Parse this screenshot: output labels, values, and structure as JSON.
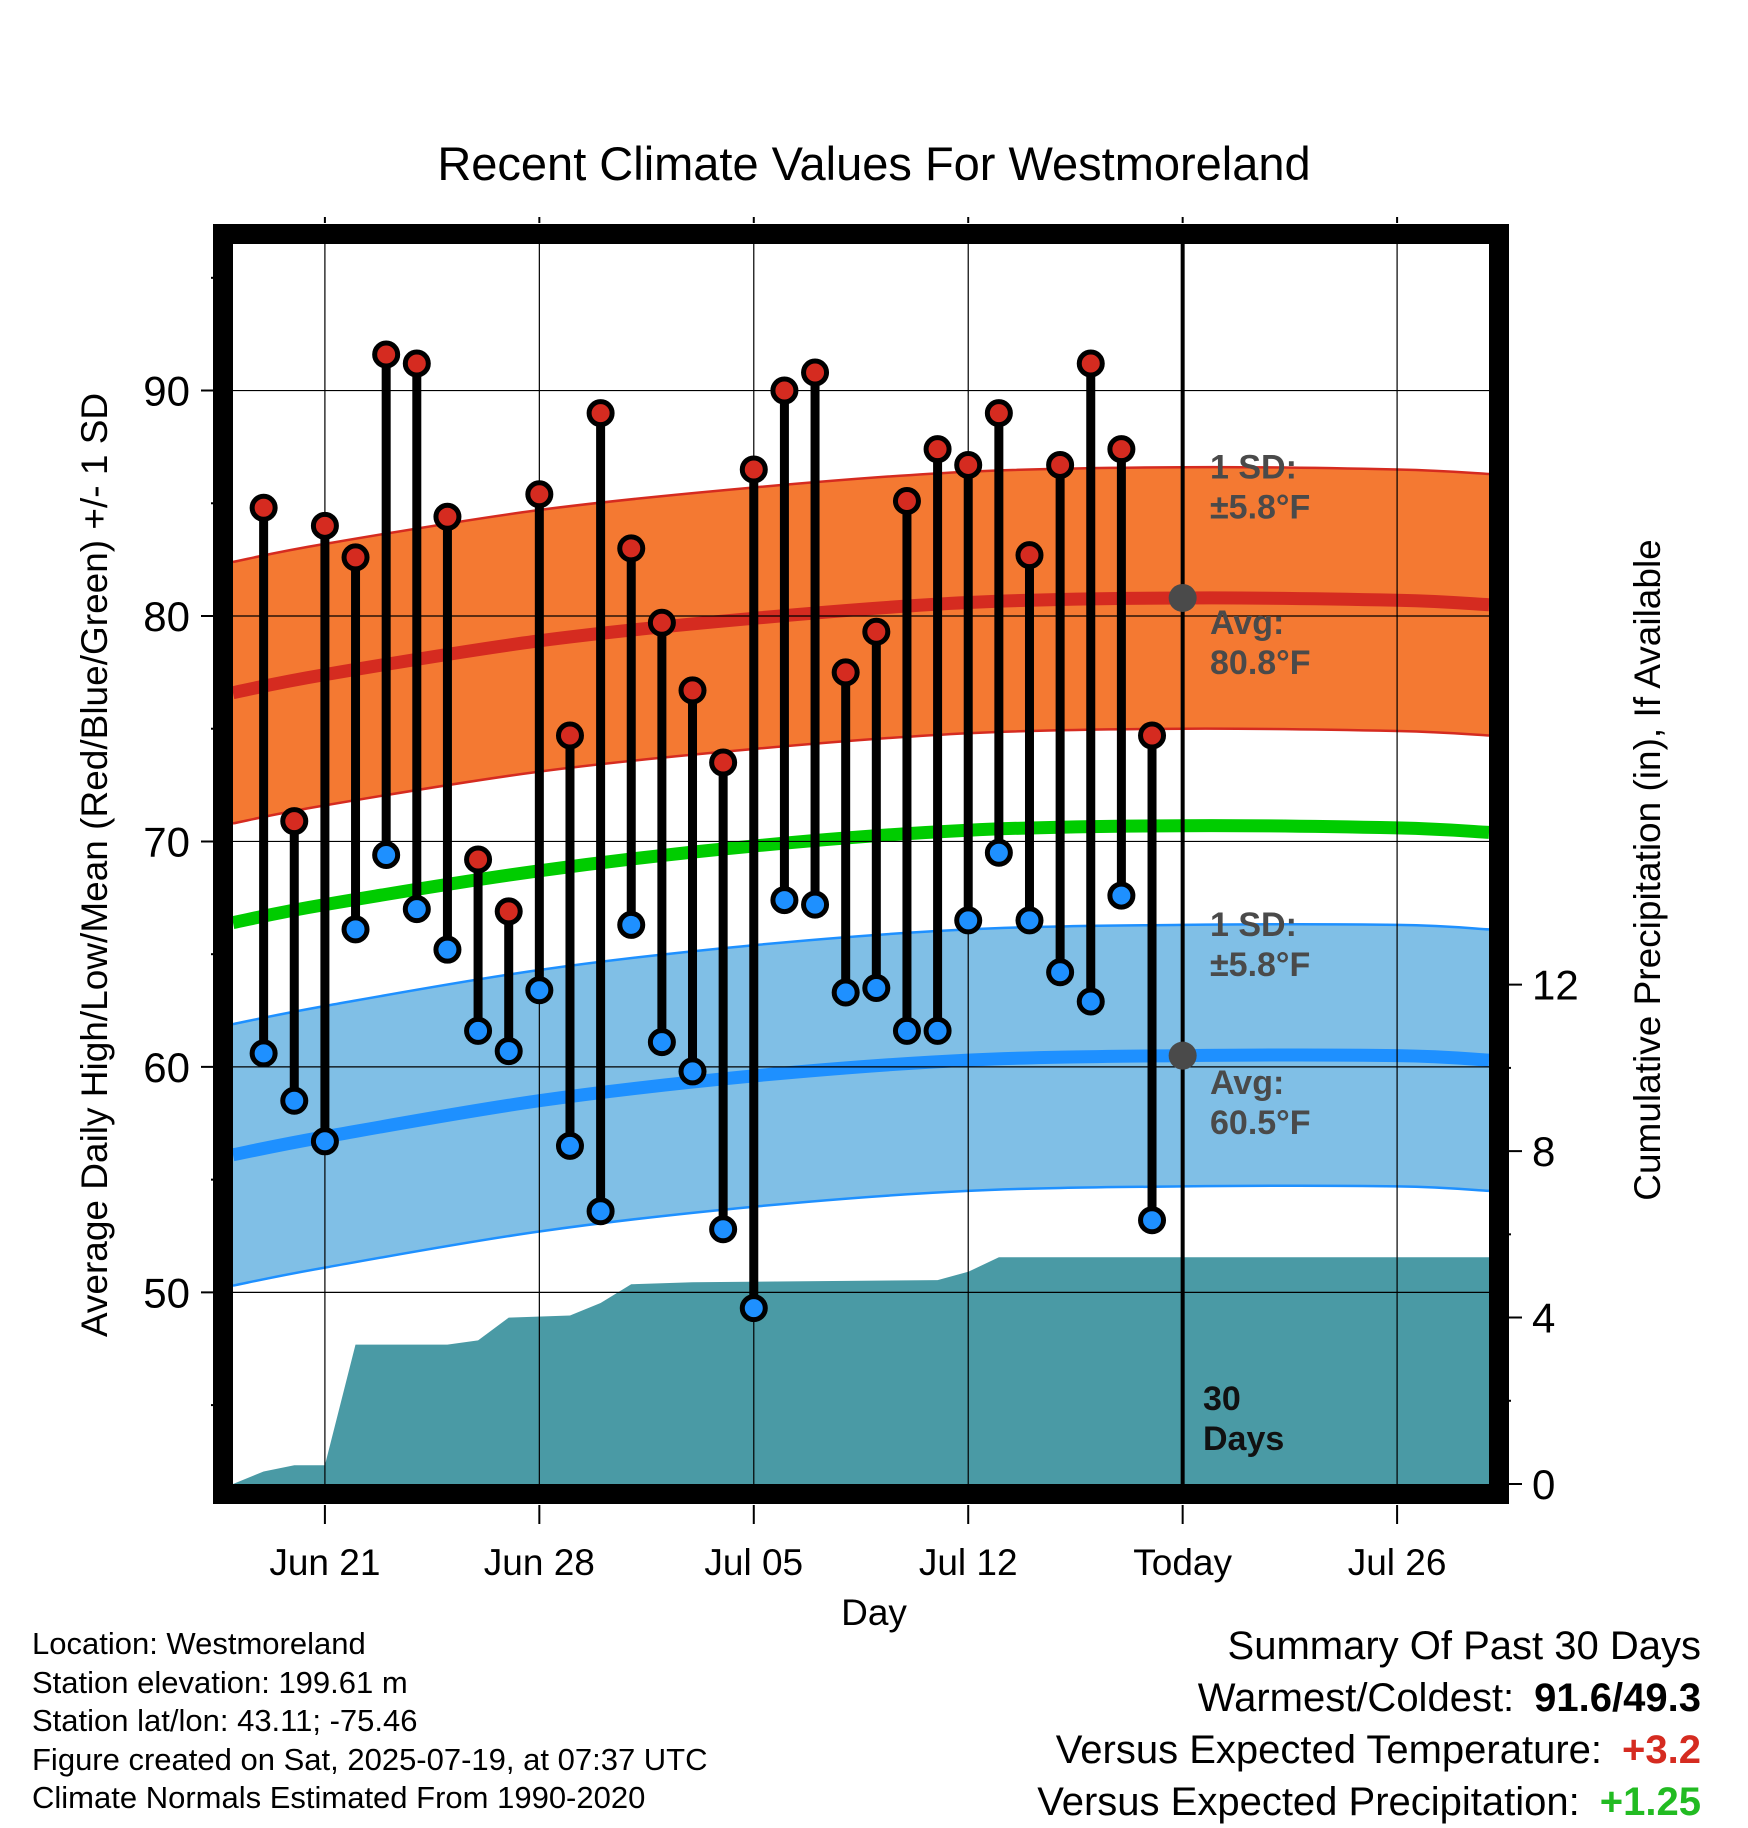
{
  "chart_data": {
    "type": "line",
    "title": "Recent Climate Values For Westmoreland",
    "xlabel": "Day",
    "ylabel": "Average Daily High/Low/Mean (Red/Blue/Green) +/- 1 SD",
    "y2label": "Cumulative Precipitation (in), If Available",
    "x_ticks": [
      {
        "date": "2025-06-21",
        "label": "Jun 21"
      },
      {
        "date": "2025-06-28",
        "label": "Jun 28"
      },
      {
        "date": "2025-07-05",
        "label": "Jul 05"
      },
      {
        "date": "2025-07-12",
        "label": "Jul 12"
      },
      {
        "date": "2025-07-19",
        "label": "Today"
      },
      {
        "date": "2025-07-26",
        "label": "Jul 26"
      }
    ],
    "xlim": [
      "2025-06-18",
      "2025-07-29"
    ],
    "ylim": [
      41.5,
      96.5
    ],
    "y_ticks": [
      50,
      60,
      70,
      80,
      90
    ],
    "y2lim": [
      0,
      29.8
    ],
    "y2_ticks": [
      0,
      4,
      8,
      12
    ],
    "grid": true,
    "daily": [
      {
        "date": "2025-06-19",
        "high": 84.8,
        "low": 60.6
      },
      {
        "date": "2025-06-20",
        "high": 70.9,
        "low": 58.5
      },
      {
        "date": "2025-06-21",
        "high": 84.0,
        "low": 56.7
      },
      {
        "date": "2025-06-22",
        "high": 82.6,
        "low": 66.1
      },
      {
        "date": "2025-06-23",
        "high": 91.6,
        "low": 69.4
      },
      {
        "date": "2025-06-24",
        "high": 91.2,
        "low": 67.0
      },
      {
        "date": "2025-06-25",
        "high": 84.4,
        "low": 65.2
      },
      {
        "date": "2025-06-26",
        "high": 69.2,
        "low": 61.6
      },
      {
        "date": "2025-06-27",
        "high": 66.9,
        "low": 60.7
      },
      {
        "date": "2025-06-28",
        "high": 85.4,
        "low": 63.4
      },
      {
        "date": "2025-06-29",
        "high": 74.7,
        "low": 56.5
      },
      {
        "date": "2025-06-30",
        "high": 89.0,
        "low": 53.6
      },
      {
        "date": "2025-07-01",
        "high": 83.0,
        "low": 66.3
      },
      {
        "date": "2025-07-02",
        "high": 79.7,
        "low": 61.1
      },
      {
        "date": "2025-07-03",
        "high": 76.7,
        "low": 59.8
      },
      {
        "date": "2025-07-04",
        "high": 73.5,
        "low": 52.8
      },
      {
        "date": "2025-07-05",
        "high": 86.5,
        "low": 49.3
      },
      {
        "date": "2025-07-06",
        "high": 90.0,
        "low": 67.4
      },
      {
        "date": "2025-07-07",
        "high": 90.8,
        "low": 67.2
      },
      {
        "date": "2025-07-08",
        "high": 77.5,
        "low": 63.3
      },
      {
        "date": "2025-07-09",
        "high": 79.3,
        "low": 63.5
      },
      {
        "date": "2025-07-10",
        "high": 85.1,
        "low": 61.6
      },
      {
        "date": "2025-07-11",
        "high": 87.4,
        "low": 61.6
      },
      {
        "date": "2025-07-12",
        "high": 86.7,
        "low": 66.5
      },
      {
        "date": "2025-07-13",
        "high": 89.0,
        "low": 69.5
      },
      {
        "date": "2025-07-14",
        "high": 82.7,
        "low": 66.5
      },
      {
        "date": "2025-07-15",
        "high": 86.7,
        "low": 64.2
      },
      {
        "date": "2025-07-16",
        "high": 91.2,
        "low": 62.9
      },
      {
        "date": "2025-07-17",
        "high": 87.4,
        "low": 67.6
      },
      {
        "date": "2025-07-18",
        "high": 74.7,
        "low": 53.2
      }
    ],
    "normals": [
      {
        "date": "2025-06-18",
        "high": 76.6,
        "low": 56.1,
        "mean": 66.4
      },
      {
        "date": "2025-06-21",
        "high": 77.4,
        "low": 56.9,
        "mean": 67.2
      },
      {
        "date": "2025-06-28",
        "high": 78.9,
        "low": 58.5,
        "mean": 68.7
      },
      {
        "date": "2025-07-05",
        "high": 79.9,
        "low": 59.6,
        "mean": 69.8
      },
      {
        "date": "2025-07-12",
        "high": 80.6,
        "low": 60.3,
        "mean": 70.5
      },
      {
        "date": "2025-07-19",
        "high": 80.8,
        "low": 60.5,
        "mean": 70.7
      },
      {
        "date": "2025-07-26",
        "high": 80.7,
        "low": 60.5,
        "mean": 70.6
      },
      {
        "date": "2025-07-29",
        "high": 80.5,
        "low": 60.3,
        "mean": 70.4
      }
    ],
    "sd_high": 5.8,
    "sd_low": 5.8,
    "precip_cumulative": [
      {
        "date": "2025-06-18",
        "value": 0.0
      },
      {
        "date": "2025-06-19",
        "value": 0.3
      },
      {
        "date": "2025-06-20",
        "value": 0.45
      },
      {
        "date": "2025-06-21",
        "value": 0.45
      },
      {
        "date": "2025-06-22",
        "value": 3.35
      },
      {
        "date": "2025-06-25",
        "value": 3.35
      },
      {
        "date": "2025-06-26",
        "value": 3.45
      },
      {
        "date": "2025-06-27",
        "value": 4.0
      },
      {
        "date": "2025-06-29",
        "value": 4.05
      },
      {
        "date": "2025-06-30",
        "value": 4.35
      },
      {
        "date": "2025-07-01",
        "value": 4.8
      },
      {
        "date": "2025-07-03",
        "value": 4.85
      },
      {
        "date": "2025-07-11",
        "value": 4.9
      },
      {
        "date": "2025-07-12",
        "value": 5.1
      },
      {
        "date": "2025-07-13",
        "value": 5.45
      },
      {
        "date": "2025-07-18",
        "value": 5.45
      },
      {
        "date": "2025-07-29",
        "value": 5.45
      }
    ],
    "colors": {
      "high_band": "#f47932",
      "high_line": "#d52b20",
      "low_band": "#80bfe6",
      "low_line": "#1e90ff",
      "mean_line": "#00cc00",
      "precip": "#4a9aa5",
      "high_dot": "#d52b20",
      "low_dot": "#1e90ff",
      "annotation": "#4a4a4a"
    },
    "annotations": {
      "high_sd_label": [
        "1 SD:",
        "±5.8°F"
      ],
      "high_avg_label": [
        "Avg:",
        "80.8°F"
      ],
      "low_sd_label": [
        "1 SD:",
        "±5.8°F"
      ],
      "low_avg_label": [
        "Avg:",
        "60.5°F"
      ],
      "days_label": [
        "30",
        "Days"
      ],
      "today_high_avg": 80.8,
      "today_low_avg": 60.5
    }
  },
  "meta": {
    "location": "Location: Westmoreland",
    "elevation": "Station elevation: 199.61 m",
    "latlon": "Station lat/lon: 43.11; -75.46",
    "created": "Figure created on Sat, 2025-07-19, at 07:37 UTC",
    "normals": "Climate Normals Estimated From 1990-2020"
  },
  "summary": {
    "title": "Summary Of Past 30 Days",
    "warm_cold_label": "Warmest/Coldest:",
    "warm_cold_value": "91.6/49.3",
    "temp_label": "Versus Expected Temperature:",
    "temp_value": "+3.2",
    "temp_color": "#d52b20",
    "precip_label": "Versus Expected Precipitation:",
    "precip_value": "+1.25",
    "precip_color": "#22bb22"
  }
}
